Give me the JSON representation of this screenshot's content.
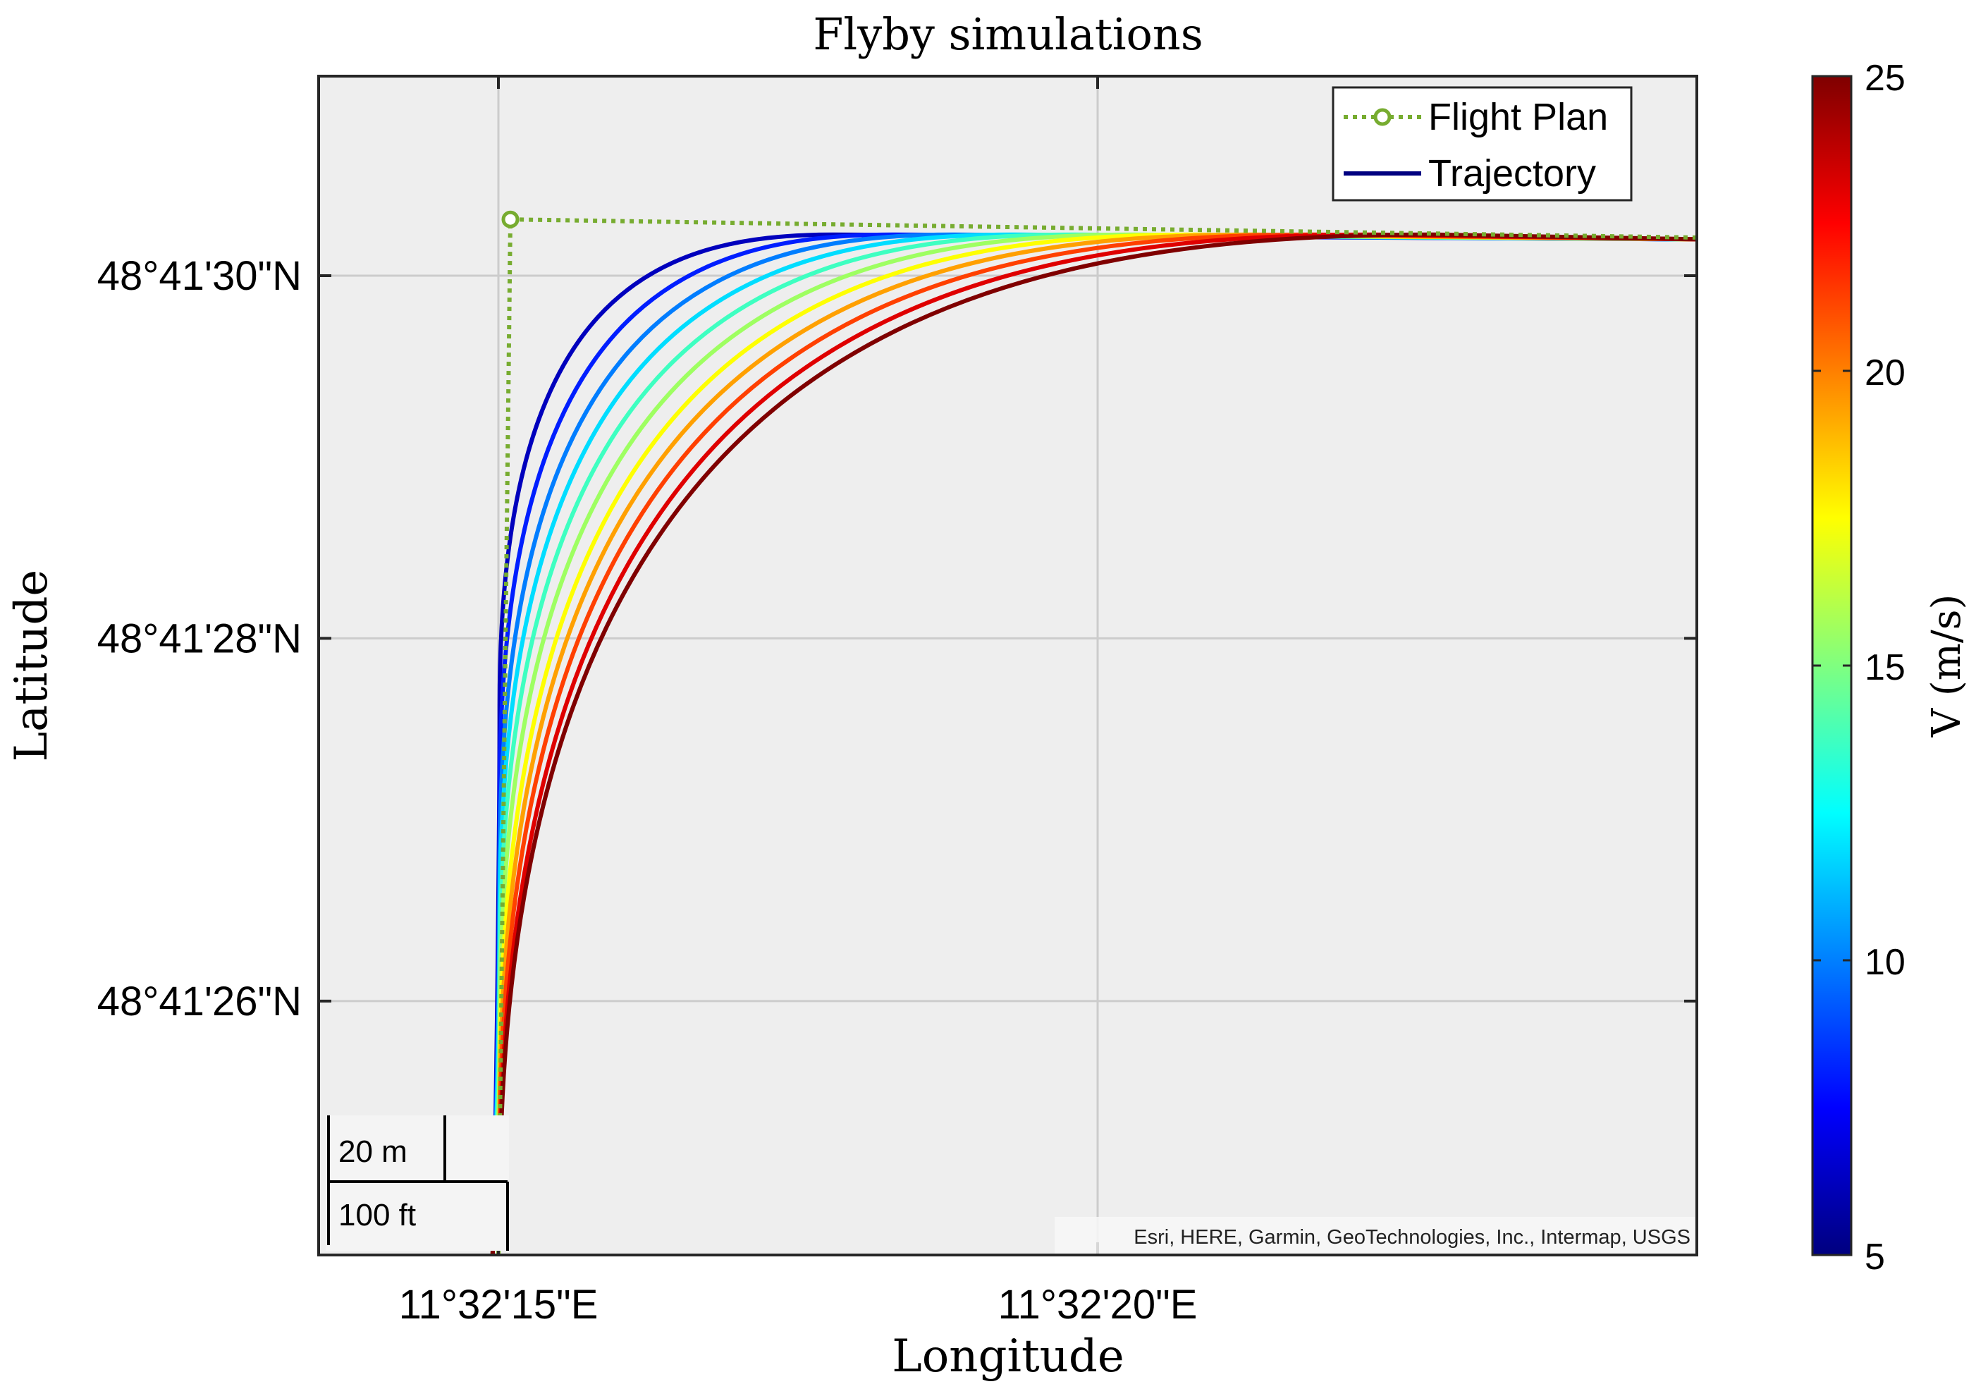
{
  "chart_data": {
    "type": "line",
    "title": "Flyby simulations",
    "xlabel": "Longitude",
    "ylabel": "Latitude",
    "x_range_arcsec": [
      13.5,
      25.0
    ],
    "y_range_arcsec": [
      24.6,
      31.1
    ],
    "x_ticks": [
      {
        "value": 15,
        "label": "11°32'15\"E"
      },
      {
        "value": 20,
        "label": "11°32'20\"E"
      }
    ],
    "y_ticks": [
      {
        "value": 30,
        "label": "48°41'30\"N"
      },
      {
        "value": 28,
        "label": "48°41'28\"N"
      },
      {
        "value": 26,
        "label": "48°41'26\"N"
      }
    ],
    "grid": true,
    "legend": {
      "position": "top-right",
      "entries": [
        {
          "label": "Flight Plan",
          "color": "#77ac30",
          "style": "dotted-marker"
        },
        {
          "label": "Trajectory",
          "color": "#000080",
          "style": "solid"
        }
      ]
    },
    "flight_plan": {
      "color": "#77ac30",
      "waypoint": {
        "lon_arcsec": 15.1,
        "lat_arcsec": 30.31
      },
      "points": [
        {
          "lon_arcsec": 15.0,
          "lat_arcsec": 24.6
        },
        {
          "lon_arcsec": 15.1,
          "lat_arcsec": 30.31
        },
        {
          "lon_arcsec": 25.0,
          "lat_arcsec": 30.21
        }
      ]
    },
    "trajectory_common": {
      "start": {
        "lon_arcsec": 14.95,
        "lat_arcsec": 24.6
      },
      "end": {
        "lon_arcsec": 25.0,
        "lat_arcsec": 30.2
      },
      "asymptote_lat_arcsec": 30.23
    },
    "series": [
      {
        "name": "V = 5 m/s",
        "speed": 5,
        "corner_x_extent_arcsec": 2.8,
        "corner_y_extent_arcsec": 2.6
      },
      {
        "name": "V = 7 m/s",
        "speed": 7,
        "corner_x_extent_arcsec": 3.3,
        "corner_y_extent_arcsec": 3.1
      },
      {
        "name": "V = 9 m/s",
        "speed": 9,
        "corner_x_extent_arcsec": 3.8,
        "corner_y_extent_arcsec": 3.5
      },
      {
        "name": "V = 11 m/s",
        "speed": 11,
        "corner_x_extent_arcsec": 4.3,
        "corner_y_extent_arcsec": 3.8
      },
      {
        "name": "V = 13 m/s",
        "speed": 13,
        "corner_x_extent_arcsec": 4.8,
        "corner_y_extent_arcsec": 4.1
      },
      {
        "name": "V = 15 m/s",
        "speed": 15,
        "corner_x_extent_arcsec": 5.3,
        "corner_y_extent_arcsec": 4.4
      },
      {
        "name": "V = 17 m/s",
        "speed": 17,
        "corner_x_extent_arcsec": 5.8,
        "corner_y_extent_arcsec": 4.7
      },
      {
        "name": "V = 19 m/s",
        "speed": 19,
        "corner_x_extent_arcsec": 6.3,
        "corner_y_extent_arcsec": 4.9
      },
      {
        "name": "V = 21 m/s",
        "speed": 21,
        "corner_x_extent_arcsec": 6.8,
        "corner_y_extent_arcsec": 5.1
      },
      {
        "name": "V = 23 m/s",
        "speed": 23,
        "corner_x_extent_arcsec": 7.3,
        "corner_y_extent_arcsec": 5.3
      },
      {
        "name": "V = 25 m/s",
        "speed": 25,
        "corner_x_extent_arcsec": 7.8,
        "corner_y_extent_arcsec": 5.4
      }
    ],
    "colorbar": {
      "label": "V (m/s)",
      "min": 5,
      "max": 25,
      "ticks": [
        5,
        10,
        15,
        20,
        25
      ],
      "colormap": "jet"
    },
    "scalebar": {
      "metric_label": "20 m",
      "imperial_label": "100 ft"
    },
    "attribution": "Esri, HERE, Garmin, GeoTechnologies, Inc., Intermap, USGS"
  },
  "colors": {
    "plot_background": "#eeeeee",
    "grid": "#cccccc",
    "axes": "#262626"
  }
}
